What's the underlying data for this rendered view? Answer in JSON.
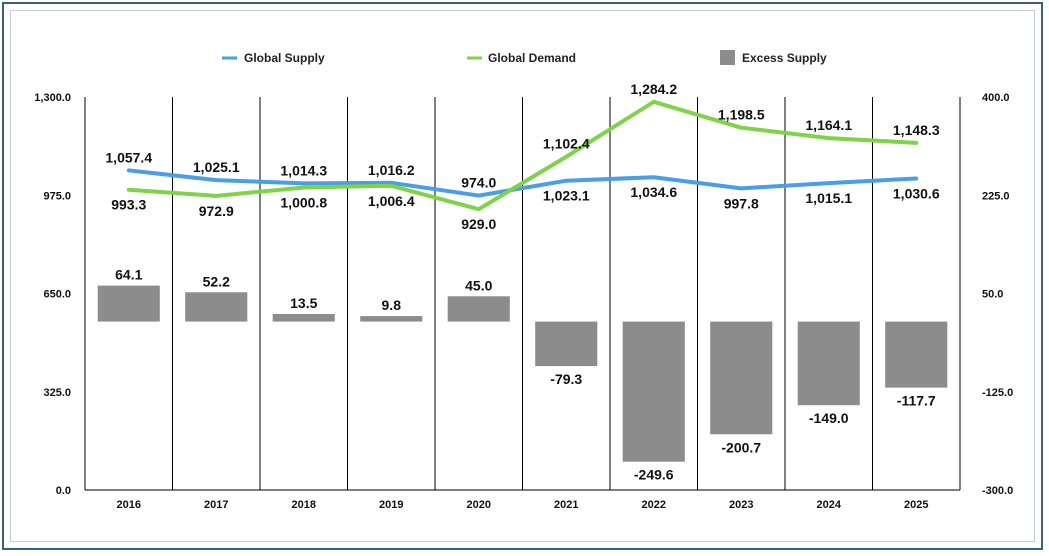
{
  "chart_data": {
    "type": "bar",
    "title": "",
    "xlabel": "",
    "ylabel": "",
    "categories": [
      "2016",
      "2017",
      "2018",
      "2019",
      "2020",
      "2021",
      "2022",
      "2023",
      "2024",
      "2025"
    ],
    "left_axis": {
      "ylim": [
        0,
        1300
      ],
      "ticks": [
        0,
        325,
        650,
        975,
        1300
      ],
      "tick_labels": [
        "0.0",
        "325.0",
        "650.0",
        "975.0",
        "1,300.0"
      ]
    },
    "right_axis": {
      "ylim": [
        -300,
        400
      ],
      "ticks": [
        -300,
        -125,
        50,
        225,
        400
      ],
      "tick_labels": [
        "-300.0",
        "-125.0",
        "50.0",
        "225.0",
        "400.0"
      ]
    },
    "grid": "vertical category separators",
    "legend_position": "top-center",
    "series": [
      {
        "name": "Global Supply",
        "type": "line",
        "axis": "left",
        "color": "#4a9ee8",
        "values": [
          1057.4,
          1025.1,
          1014.3,
          1016.2,
          974.0,
          1023.1,
          1034.6,
          997.8,
          1015.1,
          1030.6
        ],
        "labels": [
          "1,057.4",
          "1,025.1",
          "1,014.3",
          "1,016.2",
          "974.0",
          "1,023.1",
          "1,034.6",
          "997.8",
          "1,015.1",
          "1,030.6"
        ]
      },
      {
        "name": "Global Demand",
        "type": "line",
        "axis": "left",
        "color": "#7ed348",
        "values": [
          993.3,
          972.9,
          1000.8,
          1006.4,
          929.0,
          1102.4,
          1284.2,
          1198.5,
          1164.1,
          1148.3
        ],
        "labels": [
          "993.3",
          "972.9",
          "1,000.8",
          "1,006.4",
          "929.0",
          "1,102.4",
          "1,284.2",
          "1,198.5",
          "1,164.1",
          "1,148.3"
        ]
      },
      {
        "name": "Excess Supply",
        "type": "bar",
        "axis": "right",
        "color": "#8c8c8c",
        "values": [
          64.1,
          52.2,
          13.5,
          9.8,
          45.0,
          -79.3,
          -249.6,
          -200.7,
          -149.0,
          -117.7
        ],
        "labels": [
          "64.1",
          "52.2",
          "13.5",
          "9.8",
          "45.0",
          "-79.3",
          "-249.6",
          "-200.7",
          "-149.0",
          "-117.7"
        ]
      }
    ]
  }
}
